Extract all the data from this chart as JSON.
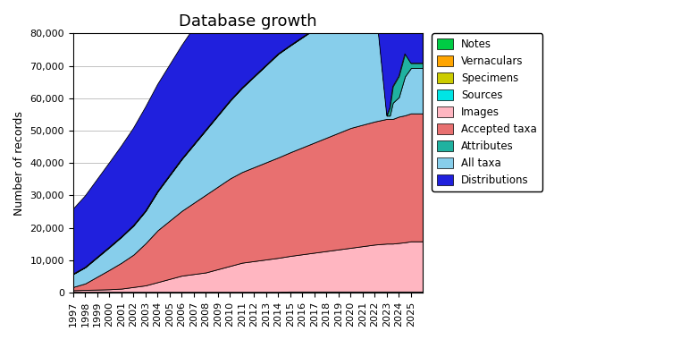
{
  "title": "Database growth",
  "ylabel": "Number of records",
  "ylim": [
    0,
    80000
  ],
  "yticks": [
    0,
    10000,
    20000,
    30000,
    40000,
    50000,
    60000,
    70000,
    80000
  ],
  "ytick_labels": [
    "0",
    "10,000",
    "20,000",
    "30,000",
    "40,000",
    "50,000",
    "60,000",
    "70,000",
    "80,000"
  ],
  "years": [
    1997,
    1998,
    1999,
    2000,
    2001,
    2002,
    2003,
    2004,
    2005,
    2006,
    2007,
    2008,
    2009,
    2010,
    2011,
    2012,
    2013,
    2014,
    2015,
    2016,
    2017,
    2018,
    2019,
    2020,
    2021,
    2022,
    2023,
    2023.25,
    2023.5,
    2024,
    2024.5,
    2025,
    2026
  ],
  "layers": {
    "Sources": [
      200,
      200,
      200,
      200,
      200,
      200,
      200,
      200,
      200,
      200,
      200,
      200,
      200,
      200,
      200,
      200,
      200,
      200,
      300,
      300,
      300,
      300,
      300,
      300,
      300,
      300,
      300,
      300,
      300,
      300,
      300,
      300,
      300
    ],
    "Images": [
      500,
      600,
      700,
      800,
      1000,
      1500,
      2000,
      3000,
      4000,
      5000,
      5500,
      6000,
      7000,
      8000,
      9000,
      9500,
      10000,
      10500,
      11000,
      11500,
      12000,
      12500,
      13000,
      13500,
      14000,
      14500,
      14800,
      14800,
      14800,
      15000,
      15200,
      15500,
      15500
    ],
    "Accepted taxa": [
      1000,
      2000,
      4000,
      6000,
      8000,
      10000,
      13000,
      16000,
      18000,
      20000,
      22000,
      24000,
      25500,
      27000,
      28000,
      29000,
      30000,
      31000,
      32000,
      33000,
      34000,
      35000,
      36000,
      37000,
      37500,
      38000,
      38500,
      38500,
      38500,
      39000,
      39200,
      39500,
      39500
    ],
    "All taxa": [
      4000,
      5000,
      6000,
      7000,
      8000,
      9000,
      10000,
      12000,
      14000,
      16000,
      18000,
      20000,
      22000,
      24000,
      26000,
      28000,
      30000,
      32000,
      33000,
      34000,
      35000,
      36000,
      37000,
      37500,
      38000,
      38500,
      1000,
      1000,
      5000,
      6000,
      12000,
      14000,
      14000
    ],
    "Attributes": [
      0,
      0,
      0,
      0,
      0,
      0,
      0,
      0,
      0,
      0,
      0,
      0,
      0,
      0,
      0,
      0,
      0,
      0,
      0,
      0,
      0,
      0,
      0,
      0,
      0,
      0,
      0,
      2500,
      5000,
      6500,
      7000,
      1500,
      1500
    ],
    "Distributions": [
      20000,
      22000,
      24000,
      26000,
      28000,
      30000,
      32000,
      33000,
      34000,
      35000,
      36000,
      37000,
      38000,
      40000,
      43000,
      50000,
      60000,
      61000,
      61500,
      62000,
      62500,
      63000,
      70000,
      70000,
      70000,
      70000,
      70000,
      70000,
      70000,
      70000,
      70000,
      70000,
      70000
    ],
    "Notes": [
      0,
      0,
      0,
      0,
      0,
      0,
      0,
      0,
      0,
      0,
      0,
      0,
      0,
      0,
      0,
      0,
      0,
      0,
      0,
      0,
      0,
      0,
      0,
      0,
      0,
      0,
      0,
      0,
      0,
      0,
      0,
      0,
      0
    ],
    "Vernaculars": [
      0,
      0,
      0,
      0,
      0,
      0,
      0,
      0,
      0,
      0,
      0,
      0,
      0,
      0,
      0,
      0,
      0,
      0,
      0,
      0,
      0,
      0,
      0,
      0,
      0,
      0,
      0,
      0,
      0,
      0,
      0,
      0,
      0
    ],
    "Specimens": [
      0,
      0,
      0,
      0,
      0,
      0,
      0,
      0,
      0,
      0,
      0,
      0,
      0,
      0,
      0,
      0,
      0,
      0,
      0,
      0,
      0,
      0,
      0,
      0,
      0,
      0,
      0,
      0,
      0,
      0,
      0,
      0,
      0
    ]
  },
  "layer_order": [
    "Sources",
    "Images",
    "Accepted taxa",
    "All taxa",
    "Attributes",
    "Distributions"
  ],
  "layer_colors": {
    "Sources": "#00E5E5",
    "Images": "#FFB6C1",
    "Accepted taxa": "#E87070",
    "All taxa": "#87CEEB",
    "Attributes": "#20B2A0",
    "Distributions": "#2020DD",
    "Notes": "#00CC44",
    "Vernaculars": "#FFA500",
    "Specimens": "#CCCC00"
  },
  "legend_order": [
    "Notes",
    "Vernaculars",
    "Specimens",
    "Sources",
    "Images",
    "Accepted taxa",
    "Attributes",
    "All taxa",
    "Distributions"
  ],
  "xlim": [
    1997,
    2026
  ],
  "xtick_positions": [
    1997,
    1998,
    1999,
    2000,
    2001,
    2002,
    2003,
    2004,
    2005,
    2006,
    2007,
    2008,
    2009,
    2010,
    2011,
    2012,
    2013,
    2014,
    2015,
    2016,
    2017,
    2018,
    2019,
    2020,
    2021,
    2022,
    2023,
    2024,
    2025
  ],
  "xtick_labels": [
    "1997",
    "1998",
    "1999",
    "2000",
    "2001",
    "2002",
    "2003",
    "2004",
    "2005",
    "2006",
    "2007",
    "2008",
    "2009",
    "2010",
    "2011",
    "2012",
    "2013",
    "2014",
    "2015",
    "2016",
    "2017",
    "2018",
    "2019",
    "2020",
    "2021",
    "2022",
    "2023",
    "2024",
    "2025"
  ],
  "background_color": "#ffffff",
  "grid_color": "#aaaaaa",
  "title_fontsize": 13,
  "axis_fontsize": 9,
  "tick_fontsize": 8
}
